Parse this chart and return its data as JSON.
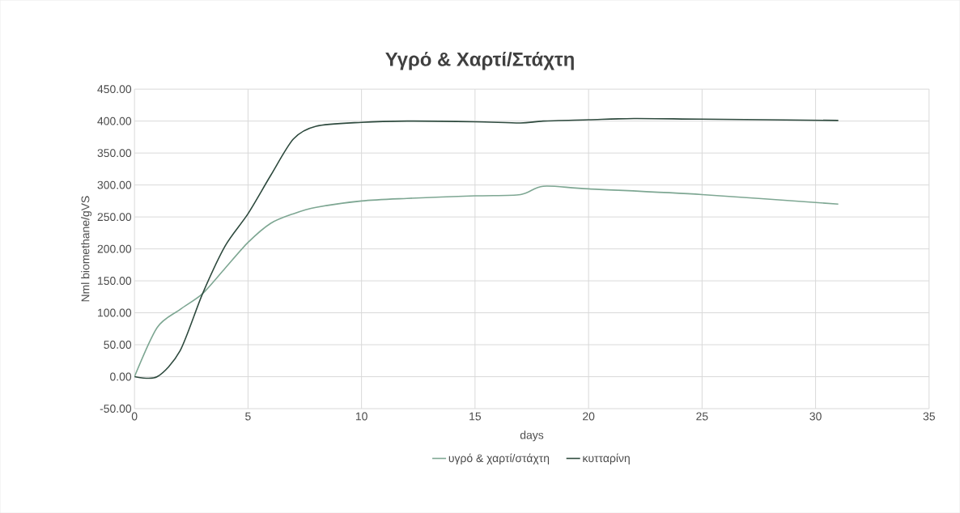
{
  "chart_data": {
    "type": "line",
    "title": "Υγρό & Χαρτί/Στάχτη",
    "xlabel": "days",
    "ylabel": "Nml biomethane/gVS",
    "xlim": [
      0,
      35
    ],
    "xticks": [
      0,
      5,
      10,
      15,
      20,
      25,
      30,
      35
    ],
    "ylim": [
      -50,
      450
    ],
    "yticks": [
      {
        "value": -50,
        "label": "-50.00"
      },
      {
        "value": 0,
        "label": "0.00"
      },
      {
        "value": 50,
        "label": "50.00"
      },
      {
        "value": 100,
        "label": "100.00"
      },
      {
        "value": 150,
        "label": "150.00"
      },
      {
        "value": 200,
        "label": "200.00"
      },
      {
        "value": 250,
        "label": "250.00"
      },
      {
        "value": 300,
        "label": "300.00"
      },
      {
        "value": 350,
        "label": "350.00"
      },
      {
        "value": 400,
        "label": "400.00"
      },
      {
        "value": 450,
        "label": "450.00"
      }
    ],
    "grid": true,
    "legend": "bottom",
    "series": [
      {
        "name": "υγρό & χαρτί/στάχτη",
        "color": "#7ea793",
        "x": [
          0,
          1,
          2,
          3,
          4,
          5,
          6,
          7,
          8,
          10,
          12,
          15,
          17,
          18,
          20,
          25,
          31
        ],
        "values": [
          0,
          77,
          105,
          130,
          170,
          210,
          240,
          255,
          265,
          275,
          279,
          283,
          285,
          298,
          294,
          285,
          270
        ]
      },
      {
        "name": "κυτταρίνη",
        "color": "#2e4a3e",
        "x": [
          0,
          1,
          2,
          3,
          4,
          5,
          6,
          7,
          8,
          10,
          12,
          15,
          17,
          18,
          20,
          22,
          25,
          31
        ],
        "values": [
          0,
          0,
          40,
          130,
          205,
          255,
          315,
          372,
          392,
          398,
          400,
          399,
          397,
          400,
          402,
          404,
          403,
          401
        ]
      }
    ]
  }
}
